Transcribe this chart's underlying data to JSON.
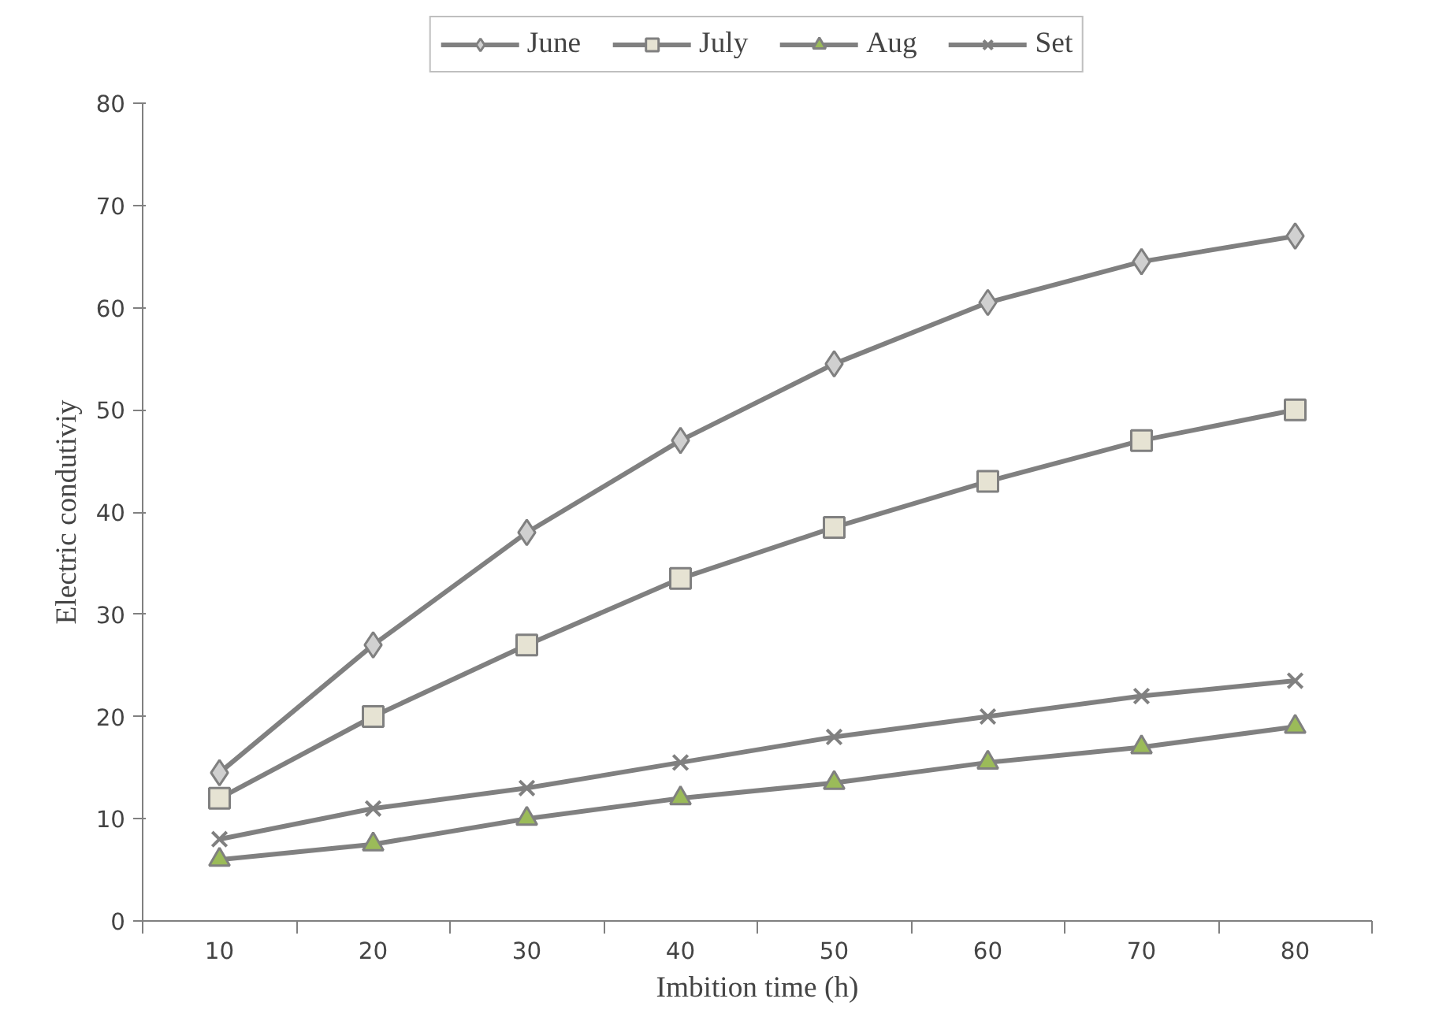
{
  "chart_data": {
    "type": "line",
    "xlabel": "Imbition time (h)",
    "ylabel": "Electric condutiviy",
    "categories": [
      "10",
      "20",
      "30",
      "40",
      "50",
      "60",
      "70",
      "80"
    ],
    "ylim": [
      0,
      80
    ],
    "yticks": [
      0,
      10,
      20,
      30,
      40,
      50,
      60,
      70,
      80
    ],
    "grid": false,
    "legend": "top",
    "series": [
      {
        "name": "June",
        "color": "#d0d0d0",
        "marker": "diamond",
        "values": [
          14.5,
          27,
          38,
          47,
          54.5,
          60.5,
          64.5,
          67
        ]
      },
      {
        "name": "July",
        "color": "#e6e3d3",
        "marker": "square",
        "values": [
          12,
          20,
          27,
          33.5,
          38.5,
          43,
          47,
          50
        ]
      },
      {
        "name": "Aug",
        "color": "#9bbb59",
        "marker": "triangle",
        "values": [
          6,
          7.5,
          10,
          12,
          13.5,
          15.5,
          17,
          19
        ]
      },
      {
        "name": "Set",
        "color": "#808080",
        "marker": "x",
        "values": [
          8,
          11,
          13,
          15.5,
          18,
          20,
          22,
          23.5
        ]
      }
    ]
  }
}
